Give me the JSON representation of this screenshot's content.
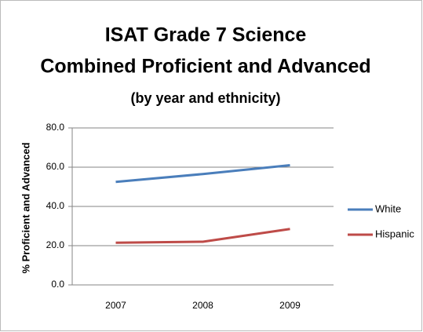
{
  "chart_data": {
    "type": "line",
    "title": [
      "ISAT Grade 7 Science",
      "Combined Proficient and Advanced"
    ],
    "subtitle": "(by year and ethnicity)",
    "y_label": "% Proficient and Advanced",
    "categories": [
      "2007",
      "2008",
      "2009"
    ],
    "series": [
      {
        "name": "White",
        "color": "#4a7ebb",
        "values": [
          52.5,
          56.5,
          61.0
        ]
      },
      {
        "name": "Hispanic",
        "color": "#be4b48",
        "values": [
          21.5,
          22.0,
          28.5
        ]
      }
    ],
    "ylim": [
      0,
      80
    ],
    "yticks": [
      {
        "value": 0,
        "label": "0.0"
      },
      {
        "value": 20,
        "label": "20.0"
      },
      {
        "value": 40,
        "label": "40.0"
      },
      {
        "value": 60,
        "label": "60.0"
      },
      {
        "value": 80,
        "label": "80.0"
      }
    ],
    "grid": true,
    "legend": "right"
  }
}
